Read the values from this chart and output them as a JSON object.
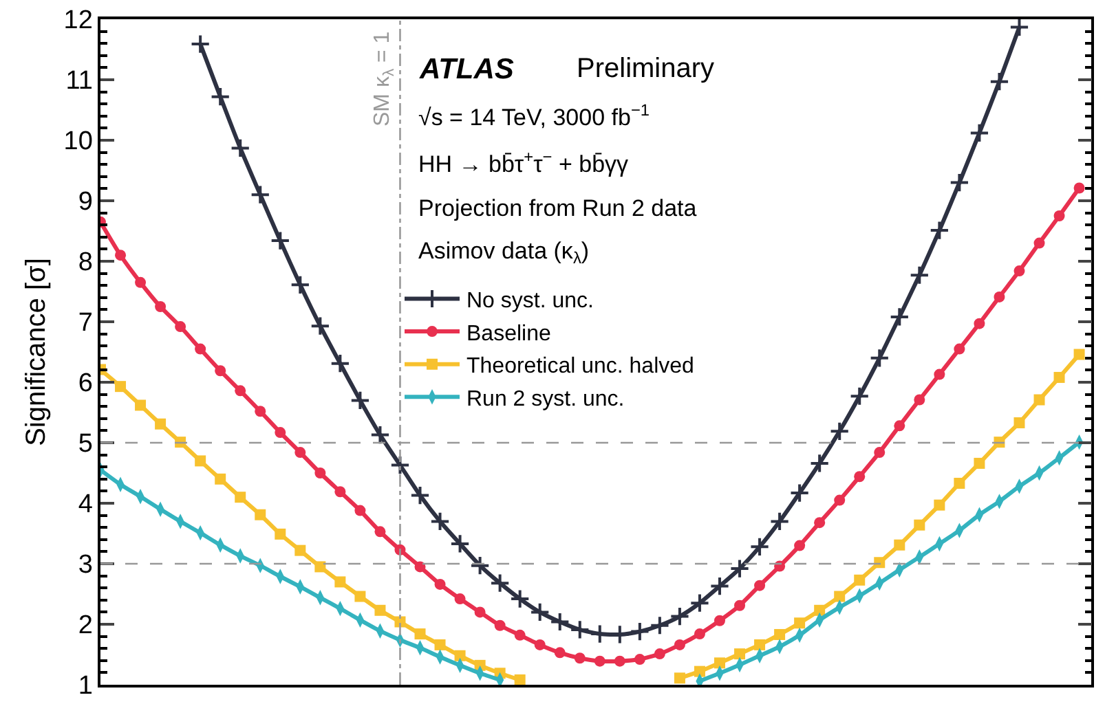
{
  "chart_data": {
    "type": "line",
    "ylabel": "Significance [σ]",
    "annotations": [
      "ATLAS",
      "Preliminary",
      "√s = 14 TeV, 3000 fb$^{−1}$",
      "HH → bb̄τ$^{+}$τ$^{−}$ + bb̄γγ",
      "Projection from Run 2 data",
      "Asimov data (κ$_{λ}$)",
      "SM κ$_{λ}$ = 1"
    ],
    "categories": [
      null,
      null,
      null,
      null,
      null,
      null,
      null,
      null,
      null,
      null,
      null,
      null,
      null,
      null,
      null,
      null,
      null,
      null,
      null,
      null,
      null,
      null,
      null,
      null,
      null,
      null,
      null,
      null,
      null,
      null,
      null,
      null,
      null,
      null,
      null,
      null,
      null,
      null,
      null,
      null,
      null,
      null,
      null,
      null,
      null,
      null,
      null,
      null,
      null,
      null
    ],
    "series": [
      {
        "name": "No syst. unc.",
        "color": "#2d3142",
        "marker": "cross",
        "values": [
          null,
          null,
          null,
          null,
          null,
          11.59,
          10.72,
          9.87,
          9.1,
          8.34,
          7.61,
          6.93,
          6.31,
          5.7,
          5.13,
          4.63,
          4.13,
          3.7,
          3.33,
          2.97,
          2.68,
          2.42,
          2.2,
          2.04,
          1.91,
          1.84,
          1.83,
          1.88,
          1.98,
          2.13,
          2.35,
          2.63,
          2.92,
          3.28,
          3.7,
          4.17,
          4.66,
          5.19,
          5.77,
          6.4,
          7.08,
          7.77,
          8.51,
          9.3,
          10.12,
          10.97,
          11.87,
          null,
          null,
          null
        ]
      },
      {
        "name": "Baseline",
        "color": "#e8304f",
        "marker": "circle",
        "values": [
          8.65,
          8.1,
          7.65,
          7.25,
          6.92,
          6.55,
          6.19,
          5.86,
          5.52,
          5.17,
          4.84,
          4.5,
          4.19,
          3.88,
          3.53,
          3.23,
          2.95,
          2.66,
          2.42,
          2.2,
          1.98,
          1.82,
          1.66,
          1.53,
          1.44,
          1.39,
          1.39,
          1.42,
          1.51,
          1.66,
          1.84,
          2.06,
          2.31,
          2.64,
          2.96,
          3.3,
          3.68,
          4.05,
          4.44,
          4.84,
          5.28,
          5.71,
          6.13,
          6.55,
          6.97,
          7.41,
          7.84,
          8.3,
          8.75,
          9.21
        ]
      },
      {
        "name": "Theoretical unc. halved",
        "color": "#f7c12e",
        "marker": "square",
        "values": [
          6.21,
          5.93,
          5.62,
          5.31,
          5.01,
          4.7,
          4.4,
          4.1,
          3.81,
          3.49,
          3.22,
          2.95,
          2.7,
          2.46,
          2.23,
          2.04,
          1.84,
          1.66,
          1.48,
          1.32,
          1.19,
          1.08,
          null,
          null,
          null,
          null,
          null,
          null,
          null,
          1.11,
          1.22,
          1.36,
          1.51,
          1.66,
          1.83,
          2.02,
          2.23,
          2.46,
          2.73,
          3.02,
          3.31,
          3.64,
          3.97,
          4.33,
          4.66,
          5.01,
          5.33,
          5.71,
          6.08,
          6.46
        ]
      },
      {
        "name": "Run 2 syst. unc.",
        "color": "#34b3bf",
        "marker": "diamond",
        "values": [
          4.55,
          4.31,
          4.11,
          3.9,
          3.7,
          3.51,
          3.31,
          3.13,
          2.97,
          2.79,
          2.62,
          2.44,
          2.26,
          2.07,
          1.89,
          1.74,
          1.61,
          1.46,
          1.32,
          1.19,
          1.08,
          null,
          null,
          null,
          null,
          null,
          null,
          null,
          null,
          null,
          1.06,
          1.19,
          1.33,
          1.48,
          1.63,
          1.82,
          2.07,
          2.28,
          2.47,
          2.68,
          2.9,
          3.11,
          3.33,
          3.55,
          3.81,
          4.03,
          4.28,
          4.5,
          4.75,
          5.01
        ]
      }
    ],
    "ylim": [
      1,
      12
    ],
    "yticks": [
      1,
      2,
      3,
      4,
      5,
      6,
      7,
      8,
      9,
      10,
      11,
      12
    ],
    "ref_lines": [
      {
        "axis": "y",
        "value": 5,
        "color": "#999999",
        "line_style": "dashed"
      },
      {
        "axis": "y",
        "value": 3,
        "color": "#999999",
        "line_style": "dashed"
      }
    ],
    "legend": "top",
    "grid": false,
    "line_style": "solid"
  }
}
